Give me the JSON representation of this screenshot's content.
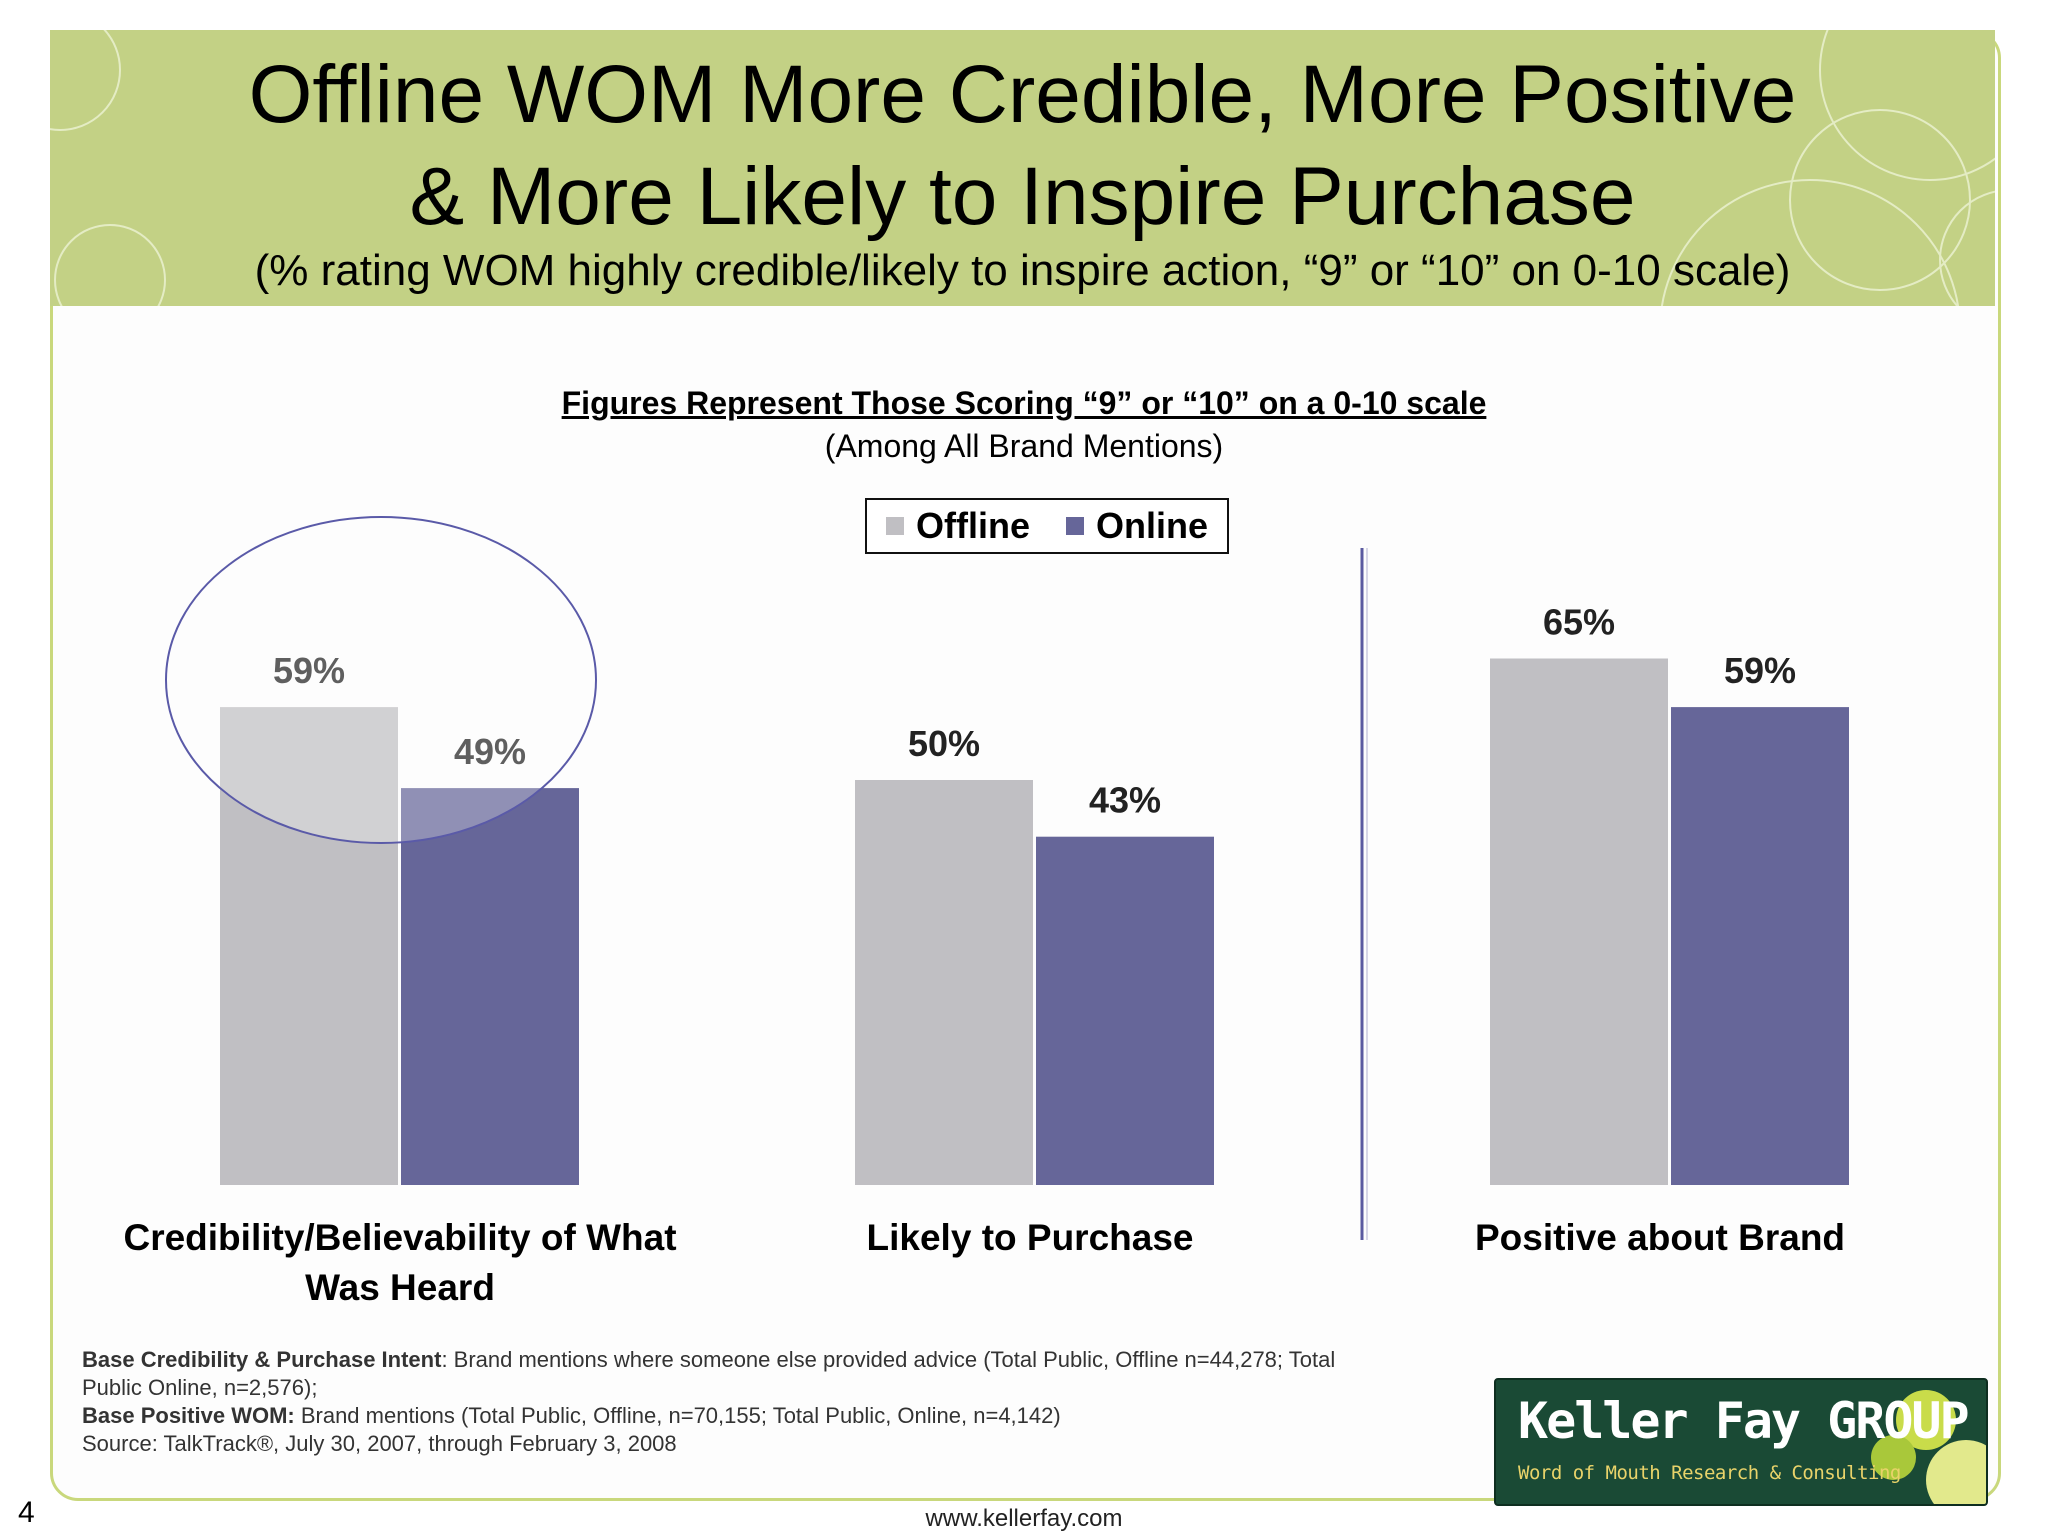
{
  "slide": {
    "title_line1": "Offline WOM More Credible, More Positive",
    "title_line2": "& More Likely to Inspire Purchase",
    "subtitle": "(% rating WOM highly credible/likely to inspire action, “9” or “10” on 0-10 scale)",
    "note_heading": "Figures Represent Those Scoring “9” or “10” on a 0-10 scale",
    "note_sub": "(Among All Brand Mentions)",
    "footnote": {
      "line1_bold": "Base Credibility & Purchase Intent",
      "line1_text": ": Brand mentions where someone else provided advice (Total Public, Offline n=44,278; Total",
      "line2_text": "Public Online, n=2,576);",
      "line3_bold": "Base Positive WOM:",
      "line3_text": " Brand mentions (Total Public, Offline, n=70,155; Total Public, Online, n=4,142)",
      "line4_text": "Source: TalkTrack®, July 30, 2007, through February 3, 2008"
    },
    "logo_name": "Keller Fay GROUP",
    "logo_tagline": "Word of Mouth Research & Consulting",
    "page_number": "4",
    "url": "www.kellerfay.com"
  },
  "colors": {
    "header": "#c3d185",
    "offline": "#c0bfc3",
    "online": "#666699",
    "highlight_ellipse": "#5a5aa8"
  },
  "chart_data": {
    "type": "bar",
    "categories": [
      "Credibility/Believability of What Was Heard",
      "Likely to Purchase",
      "Positive about Brand"
    ],
    "series": [
      {
        "name": "Offline",
        "values": [
          59,
          50,
          65
        ]
      },
      {
        "name": "Online",
        "values": [
          49,
          43,
          59
        ]
      }
    ],
    "value_labels": [
      [
        "59%",
        "50%",
        "65%"
      ],
      [
        "49%",
        "43%",
        "59%"
      ]
    ],
    "unit": "%",
    "ylim": [
      0,
      100
    ],
    "legend_position": "top-center",
    "grid": false,
    "highlighted_category": "Credibility/Believability of What Was Heard",
    "divider_before_category": "Positive about Brand"
  }
}
